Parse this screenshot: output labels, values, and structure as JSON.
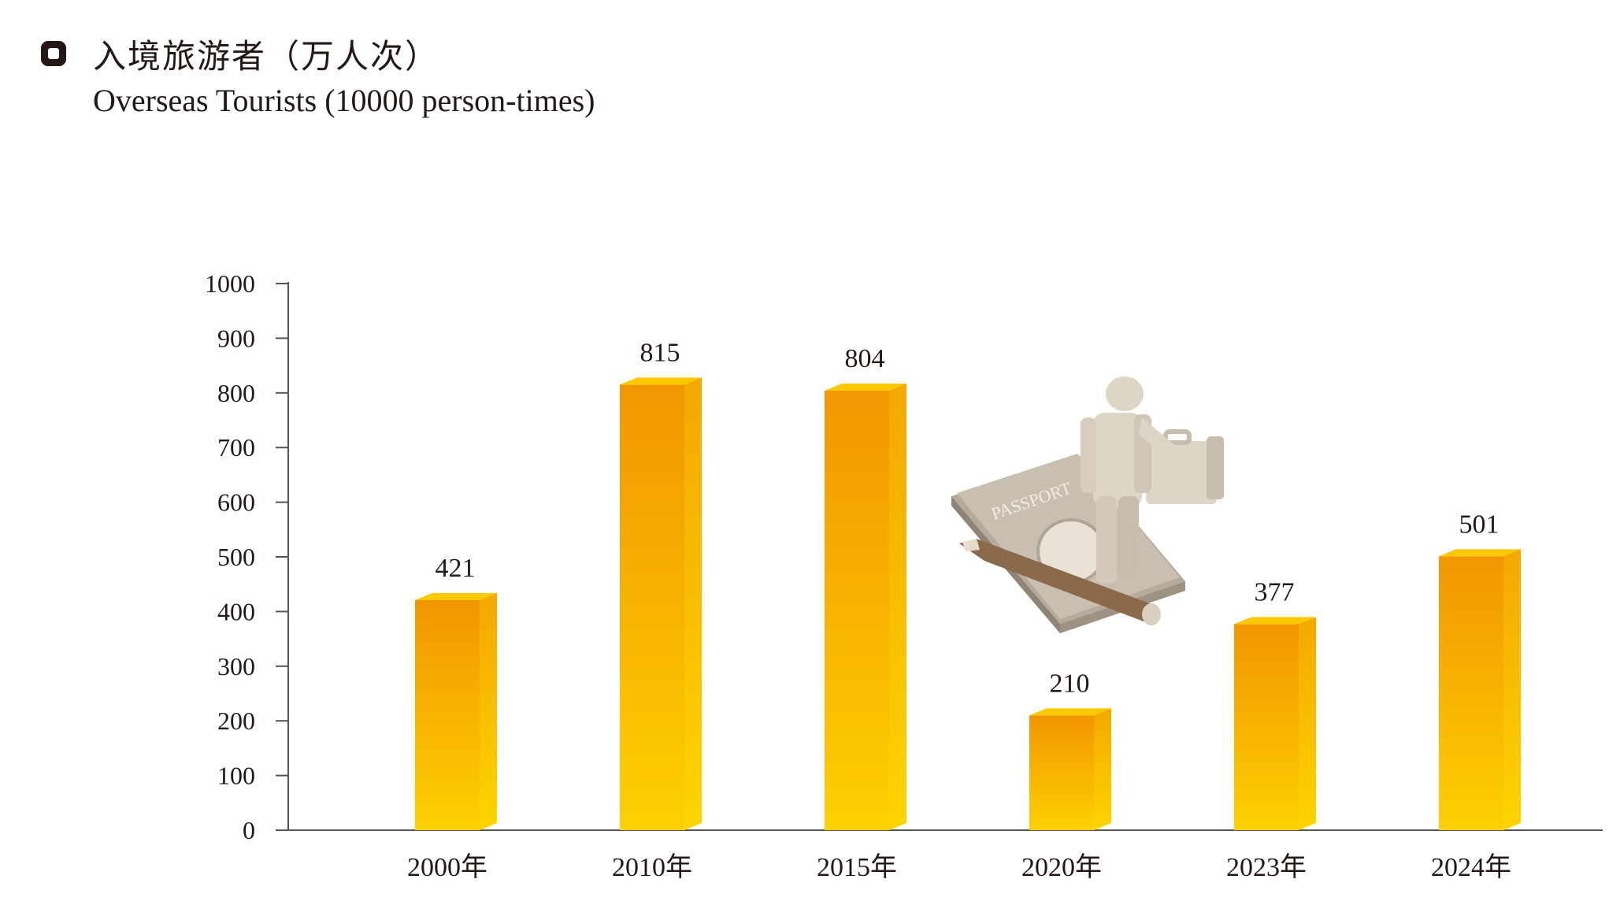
{
  "header": {
    "title_cn": "入境旅游者（万人次）",
    "title_en": "Overseas Tourists (10000 person-times)"
  },
  "illustration": {
    "icon": "traveler-passport-icon",
    "passport_text": "PASSPORT"
  },
  "chart_data": {
    "type": "bar",
    "title": "入境旅游者（万人次）",
    "subtitle": "Overseas Tourists (10000 person-times)",
    "categories": [
      "2000年",
      "2010年",
      "2015年",
      "2020年",
      "2023年",
      "2024年"
    ],
    "values": [
      421,
      815,
      804,
      210,
      377,
      501
    ],
    "ylim": [
      0,
      1000
    ],
    "yticks": [
      0,
      100,
      200,
      300,
      400,
      500,
      600,
      700,
      800,
      900,
      1000
    ],
    "grid": false,
    "legend": "none",
    "colors": {
      "bar_top": "#f29600",
      "bar_bottom": "#fccf00",
      "bar_side": "#f6b400",
      "bar_cap": "#fcc800",
      "axis": "#555555"
    }
  }
}
